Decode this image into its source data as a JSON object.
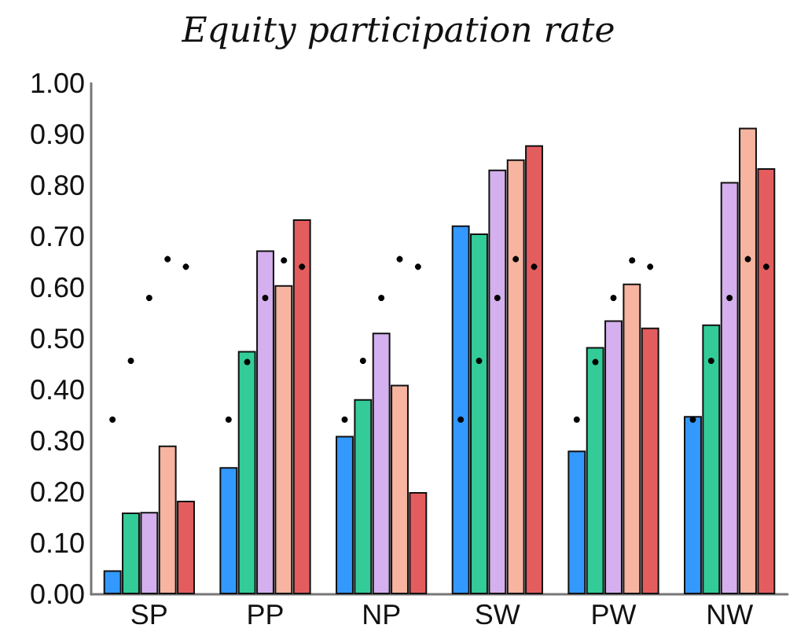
{
  "chart_data": {
    "type": "bar",
    "title": "Equity participation rate",
    "categories": [
      "SP",
      "PP",
      "NP",
      "SW",
      "PW",
      "NW"
    ],
    "ylim": [
      0,
      1
    ],
    "yticks": [
      {
        "value": 0,
        "label": "0.00"
      },
      {
        "value": 0.1,
        "label": "0.10"
      },
      {
        "value": 0.2,
        "label": "0.20"
      },
      {
        "value": 0.3,
        "label": "0.30"
      },
      {
        "value": 0.4,
        "label": "0.40"
      },
      {
        "value": 0.5,
        "label": "0.50"
      },
      {
        "value": 0.6,
        "label": "0.60"
      },
      {
        "value": 0.7,
        "label": "0.70"
      },
      {
        "value": 0.8,
        "label": "0.80"
      },
      {
        "value": 0.9,
        "label": "0.90"
      },
      {
        "value": 1,
        "label": "1.00"
      }
    ],
    "grid": false,
    "series": [
      {
        "color": "#3399ff",
        "values": [
          0.047,
          0.249,
          0.31,
          0.722,
          0.281,
          0.349
        ]
      },
      {
        "color": "#33cc99",
        "values": [
          0.16,
          0.476,
          0.382,
          0.706,
          0.484,
          0.528
        ]
      },
      {
        "color": "#d4b0ee",
        "values": [
          0.161,
          0.673,
          0.512,
          0.831,
          0.536,
          0.807
        ]
      },
      {
        "color": "#f7b4a0",
        "values": [
          0.291,
          0.605,
          0.41,
          0.851,
          0.608,
          0.913
        ]
      },
      {
        "color": "#e35d5f",
        "values": [
          0.183,
          0.734,
          0.2,
          0.879,
          0.522,
          0.834
        ]
      },
      {
        "type": "scatter",
        "color": "#000000",
        "marker": "circle",
        "x": [
          "SP",
          "PP",
          "NP",
          "SW",
          "PW",
          "NW"
        ],
        "values": [
          0.342,
          0.342,
          0.342,
          0.342,
          0.342,
          0.342
        ]
      },
      {
        "type": "scatter",
        "color": "#000000",
        "marker": "circle",
        "x": [
          "SP",
          "PP",
          "NP",
          "SW",
          "PW",
          "NW"
        ],
        "values": [
          0.457,
          0.457,
          0.457,
          0.457,
          0.457,
          0.457
        ]
      },
      {
        "type": "scatter",
        "color": "#000000",
        "marker": "circle",
        "x": [
          "SP",
          "PP",
          "NP",
          "SW",
          "PW",
          "NW"
        ],
        "values": [
          0.58,
          0.58,
          0.58,
          0.58,
          0.58,
          0.58
        ]
      },
      {
        "type": "scatter",
        "color": "#000000",
        "marker": "circle",
        "x": [
          "SP",
          "PP",
          "NP",
          "SW",
          "PW",
          "NW"
        ],
        "values": [
          0.656,
          0.656,
          0.656,
          0.656,
          0.656,
          0.656
        ]
      },
      {
        "type": "scatter",
        "color": "#000000",
        "marker": "circle",
        "x": [
          "SP",
          "PP",
          "NP",
          "SW",
          "PW",
          "NW"
        ],
        "values": [
          0.641,
          0.641,
          0.641,
          0.641,
          0.641,
          0.641
        ]
      }
    ]
  }
}
